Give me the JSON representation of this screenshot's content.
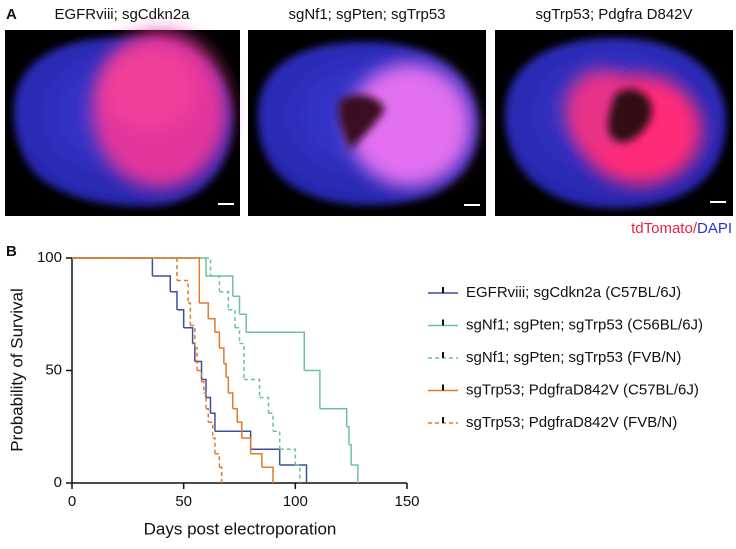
{
  "panel_a": {
    "label": "A",
    "images": [
      {
        "title": "EGFRviii; sgCdkn2a"
      },
      {
        "title": "sgNf1; sgPten; sgTrp53"
      },
      {
        "title": "sgTrp53; Pdgfra D842V"
      }
    ],
    "stain_label": [
      {
        "text": "tdTomato",
        "color": "#e8214a"
      },
      {
        "text": "/",
        "color": "#e8214a"
      },
      {
        "text": "DAPI",
        "color": "#2233dd"
      }
    ]
  },
  "chart_data": {
    "type": "line",
    "step": true,
    "panel_label": "B",
    "x_label": "Days post electroporation",
    "y_label": "Probability of Survival",
    "xlim": [
      0,
      150
    ],
    "xticks": [
      0,
      50,
      100,
      150
    ],
    "ylim": [
      0,
      100
    ],
    "yticks": [
      0,
      50,
      100
    ],
    "series": [
      {
        "name": "EGFRviii; sgCdkn2a (C57BL/6J)",
        "color": "#3f4fa0",
        "dash": false,
        "x": [
          0,
          36,
          44,
          47,
          50,
          54,
          55,
          58,
          60,
          62,
          64,
          80,
          93,
          105
        ],
        "values": [
          100,
          92,
          85,
          77,
          69,
          62,
          54,
          46,
          38,
          31,
          23,
          15,
          8,
          0
        ]
      },
      {
        "name": "sgNf1; sgPten; sgTrp53 (C56BL/6J)",
        "color": "#6cc49a",
        "dash": false,
        "x": [
          0,
          60,
          72,
          75,
          78,
          104,
          111,
          123,
          124,
          125,
          128
        ],
        "values": [
          100,
          92,
          83,
          75,
          67,
          50,
          33,
          25,
          17,
          8,
          0
        ]
      },
      {
        "name": "sgNf1; sgPten; sgTrp53 (FVB/N)",
        "color": "#6cc49a",
        "dash": true,
        "x": [
          0,
          62,
          66,
          70,
          73,
          75,
          77,
          84,
          88,
          90,
          93,
          100,
          102
        ],
        "values": [
          100,
          92,
          85,
          77,
          69,
          62,
          46,
          38,
          31,
          23,
          15,
          8,
          0
        ]
      },
      {
        "name": "sgTrp53; PdgfraD842V (C57BL/6J)",
        "color": "#e07b2f",
        "dash": false,
        "x": [
          0,
          57,
          61,
          64,
          66,
          68,
          69,
          70,
          72,
          74,
          76,
          80,
          85,
          90
        ],
        "values": [
          100,
          80,
          73,
          67,
          60,
          53,
          47,
          40,
          33,
          27,
          20,
          13,
          7,
          0
        ]
      },
      {
        "name": "sgTrp53; PdgfraD842V (FVB/N)",
        "color": "#e07b2f",
        "dash": true,
        "x": [
          0,
          47,
          52,
          53,
          55,
          56,
          58,
          59,
          60,
          61,
          63,
          64,
          66,
          67
        ],
        "values": [
          100,
          90,
          80,
          70,
          60,
          50,
          45,
          40,
          33,
          27,
          20,
          13,
          7,
          0
        ]
      }
    ]
  }
}
